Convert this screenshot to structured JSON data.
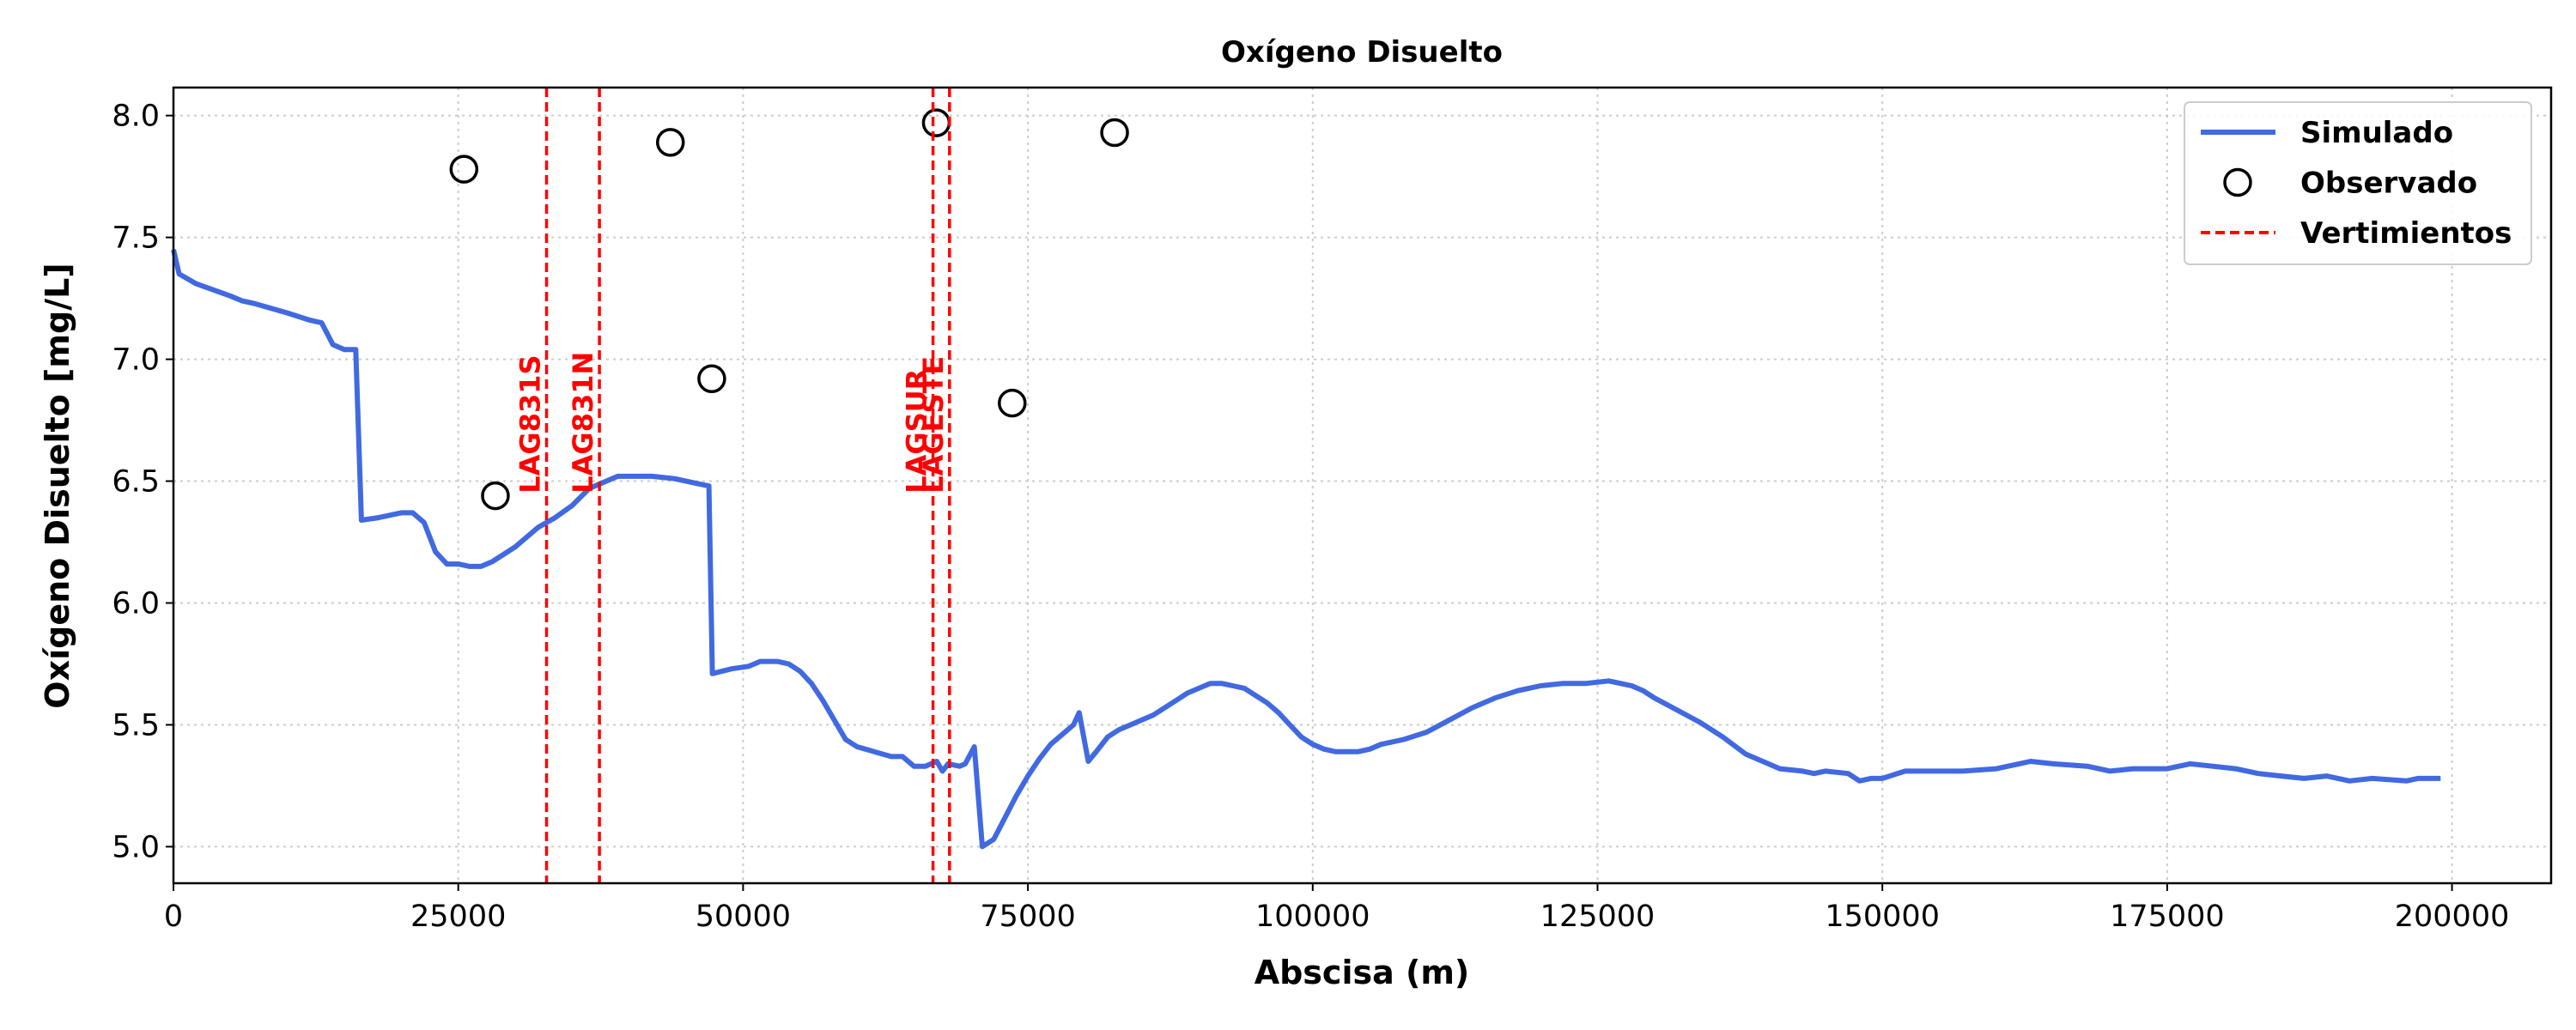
{
  "chart_data": {
    "type": "line",
    "title": "Oxígeno Disuelto",
    "xlabel": "Abscisa (m)",
    "ylabel": "Oxígeno Disuelto [mg/L]",
    "xlim": [
      0,
      208700
    ],
    "ylim": [
      4.85,
      8.115
    ],
    "xticks": [
      0,
      25000,
      50000,
      75000,
      100000,
      125000,
      150000,
      175000,
      200000
    ],
    "yticks": [
      {
        "value": 5,
        "label": "5.0"
      },
      5.5,
      {
        "value": 6,
        "label": "6.0"
      },
      6.5,
      {
        "value": 7,
        "label": "7.0"
      },
      7.5,
      {
        "value": 8,
        "label": "8.0"
      }
    ],
    "grid": true,
    "legend": "upper right",
    "series": [
      {
        "name": "Simulado",
        "type": "line",
        "color": "#4169e1",
        "x": [
          0,
          500,
          2000,
          5000,
          6000,
          7000,
          10000,
          12000,
          13000,
          14000,
          15000,
          16000,
          16500,
          18000,
          20000,
          21000,
          22000,
          23000,
          24000,
          25000,
          26000,
          27000,
          28000,
          29000,
          30000,
          32000,
          33500,
          35000,
          36500,
          38000,
          39000,
          40000,
          42000,
          44000,
          46000,
          47000,
          47300,
          49000,
          50500,
          51500,
          53000,
          54000,
          55000,
          56000,
          57000,
          58000,
          59000,
          60000,
          61500,
          63000,
          64000,
          65000,
          66000,
          67000,
          67500,
          68000,
          69000,
          69500,
          70300,
          71000,
          72000,
          73000,
          74000,
          75000,
          76000,
          77000,
          78000,
          79000,
          79500,
          80300,
          81000,
          82000,
          83000,
          84000,
          85000,
          86000,
          87000,
          88000,
          89000,
          90000,
          91000,
          92000,
          93000,
          94000,
          95000,
          96000,
          97000,
          98000,
          99000,
          100000,
          101000,
          102000,
          104000,
          105000,
          106000,
          108000,
          110000,
          112000,
          114000,
          116000,
          118000,
          120000,
          122000,
          124000,
          126000,
          127000,
          128000,
          129000,
          130000,
          132000,
          134000,
          136000,
          138000,
          140000,
          141000,
          143000,
          144000,
          145000,
          147000,
          148000,
          149000,
          150000,
          152000,
          155000,
          157000,
          160000,
          162000,
          163000,
          165000,
          168000,
          170000,
          172000,
          175000,
          177000,
          179000,
          181000,
          183000,
          185000,
          187000,
          189000,
          190000,
          191000,
          193000,
          196000,
          197000,
          199000
        ],
        "values": [
          7.45,
          7.35,
          7.31,
          7.26,
          7.24,
          7.23,
          7.19,
          7.16,
          7.15,
          7.06,
          7.04,
          7.04,
          6.34,
          6.35,
          6.37,
          6.37,
          6.33,
          6.21,
          6.16,
          6.16,
          6.15,
          6.15,
          6.17,
          6.2,
          6.23,
          6.31,
          6.35,
          6.4,
          6.47,
          6.5,
          6.52,
          6.52,
          6.52,
          6.51,
          6.49,
          6.48,
          5.71,
          5.73,
          5.74,
          5.76,
          5.76,
          5.75,
          5.72,
          5.67,
          5.6,
          5.52,
          5.44,
          5.41,
          5.39,
          5.37,
          5.37,
          5.33,
          5.33,
          5.35,
          5.31,
          5.34,
          5.33,
          5.34,
          5.41,
          5.0,
          5.03,
          5.12,
          5.21,
          5.29,
          5.36,
          5.42,
          5.46,
          5.5,
          5.55,
          5.35,
          5.39,
          5.45,
          5.48,
          5.5,
          5.52,
          5.54,
          5.57,
          5.6,
          5.63,
          5.65,
          5.67,
          5.67,
          5.66,
          5.65,
          5.62,
          5.59,
          5.55,
          5.5,
          5.45,
          5.42,
          5.4,
          5.39,
          5.39,
          5.4,
          5.42,
          5.44,
          5.47,
          5.52,
          5.57,
          5.61,
          5.64,
          5.66,
          5.67,
          5.67,
          5.68,
          5.67,
          5.66,
          5.64,
          5.61,
          5.56,
          5.51,
          5.45,
          5.38,
          5.34,
          5.32,
          5.31,
          5.3,
          5.31,
          5.3,
          5.27,
          5.28,
          5.28,
          5.31,
          5.31,
          5.31,
          5.32,
          5.34,
          5.35,
          5.34,
          5.33,
          5.31,
          5.32,
          5.32,
          5.34,
          5.33,
          5.32,
          5.3,
          5.29,
          5.28,
          5.29,
          5.28,
          5.27,
          5.28,
          5.27,
          5.28,
          5.28
        ]
      },
      {
        "name": "Observado",
        "type": "scatter",
        "color": "#000000",
        "x": [
          25500,
          28260,
          43620,
          47250,
          66960,
          73620,
          82610
        ],
        "values": [
          7.78,
          6.44,
          7.89,
          6.92,
          7.97,
          6.82,
          7.93
        ]
      },
      {
        "name": "Vertimientos",
        "type": "vline",
        "color": "#ff0000",
        "x": [
          32750,
          37390,
          66670,
          68120
        ],
        "labels": [
          "LAG831S",
          "LAG831N",
          "LAGSUR",
          "LAGESTE"
        ]
      }
    ]
  }
}
